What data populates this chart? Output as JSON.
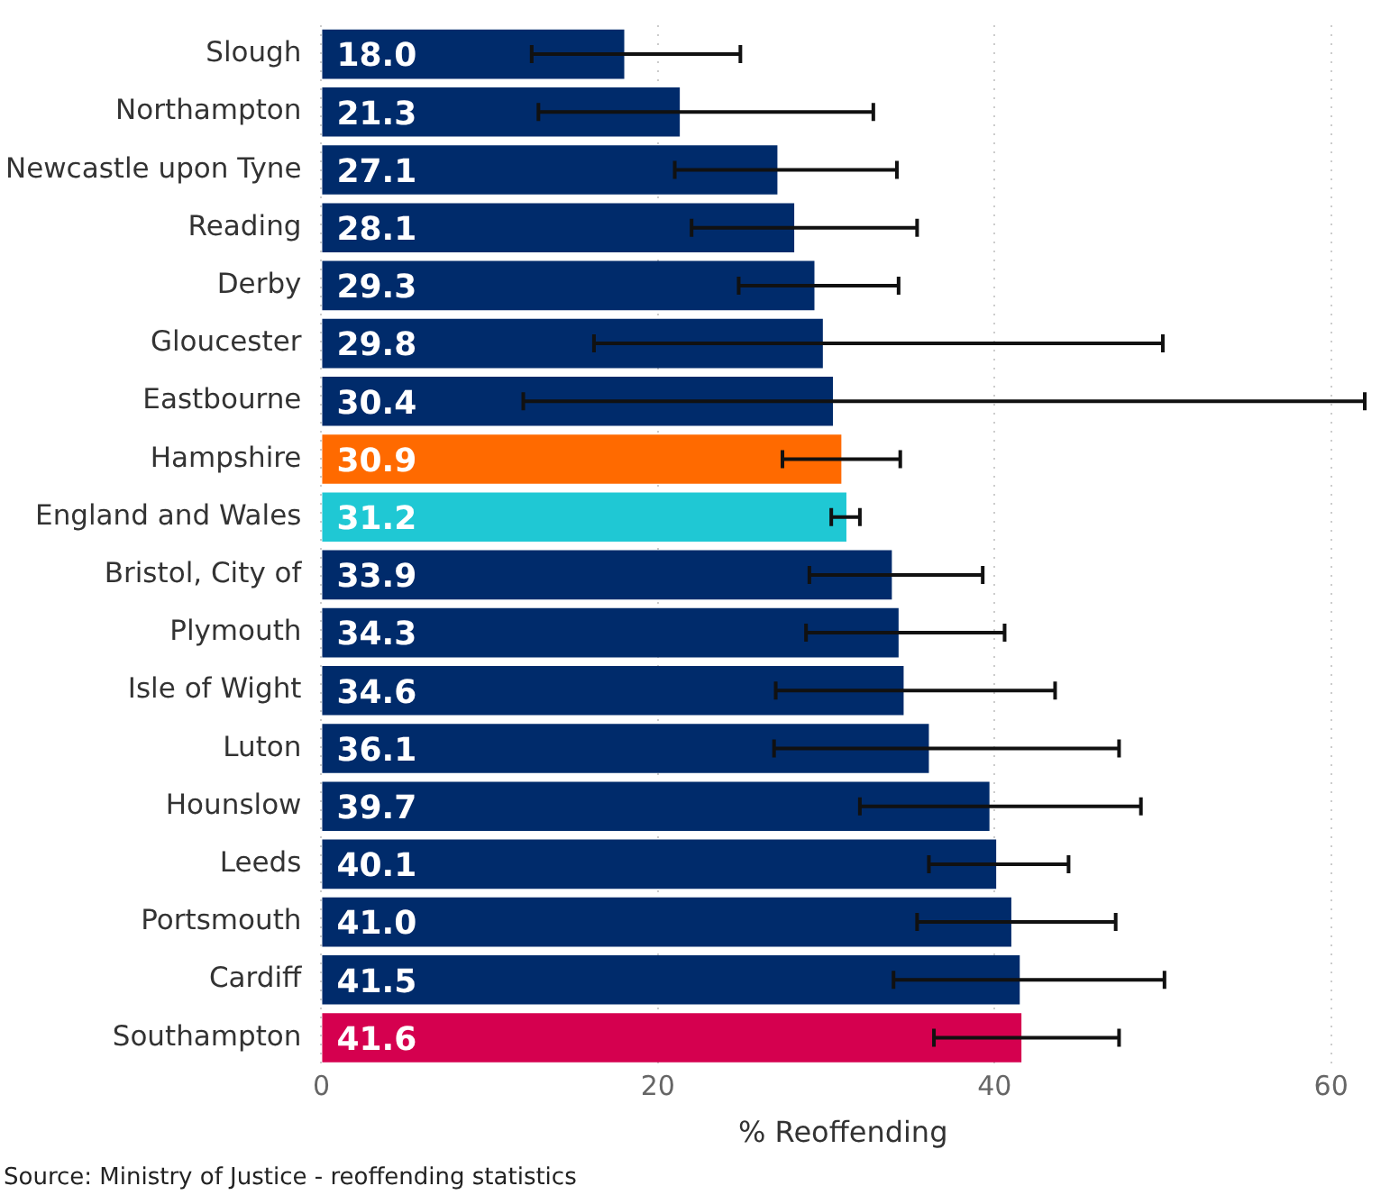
{
  "chart_data": {
    "type": "bar",
    "orientation": "horizontal",
    "xlabel": "% Reoffending",
    "categories": [
      "Slough",
      "Northampton",
      "Newcastle upon Tyne",
      "Reading",
      "Derby",
      "Gloucester",
      "Eastbourne",
      "Hampshire",
      "England and Wales",
      "Bristol, City of",
      "Plymouth",
      "Isle of Wight",
      "Luton",
      "Hounslow",
      "Leeds",
      "Portsmouth",
      "Cardiff",
      "Southampton"
    ],
    "values": [
      18.0,
      21.3,
      27.1,
      28.1,
      29.3,
      29.8,
      30.4,
      30.9,
      31.2,
      33.9,
      34.3,
      34.6,
      36.1,
      39.7,
      40.1,
      41.0,
      41.5,
      41.6
    ],
    "colors": [
      "#002b6b",
      "#002b6b",
      "#002b6b",
      "#002b6b",
      "#002b6b",
      "#002b6b",
      "#002b6b",
      "#ff6a00",
      "#1fc8d4",
      "#002b6b",
      "#002b6b",
      "#002b6b",
      "#002b6b",
      "#002b6b",
      "#002b6b",
      "#002b6b",
      "#002b6b",
      "#d5004f"
    ],
    "errors": [
      [
        12.5,
        24.9
      ],
      [
        12.9,
        32.8
      ],
      [
        21.0,
        34.2
      ],
      [
        22.0,
        35.4
      ],
      [
        24.8,
        34.3
      ],
      [
        16.2,
        50.0
      ],
      [
        12.0,
        62
      ],
      [
        27.4,
        34.4
      ],
      [
        30.3,
        32.0
      ],
      [
        29.0,
        39.3
      ],
      [
        28.8,
        40.6
      ],
      [
        27.0,
        43.6
      ],
      [
        26.9,
        47.4
      ],
      [
        32.0,
        48.7
      ],
      [
        36.1,
        44.4
      ],
      [
        35.4,
        47.2
      ],
      [
        34.0,
        50.1
      ],
      [
        36.4,
        47.4
      ]
    ],
    "value_labels": [
      "18.0",
      "21.3",
      "27.1",
      "28.1",
      "29.3",
      "29.8",
      "30.4",
      "30.9",
      "31.2",
      "33.9",
      "34.3",
      "34.6",
      "36.1",
      "39.7",
      "40.1",
      "41.0",
      "41.5",
      "41.6"
    ],
    "xlim": [
      0,
      62
    ],
    "xticks": [
      0,
      20,
      40,
      60
    ],
    "grid": "x",
    "legend": false,
    "annotations": [
      "Source: Ministry of Justice - reoffending statistics"
    ]
  }
}
